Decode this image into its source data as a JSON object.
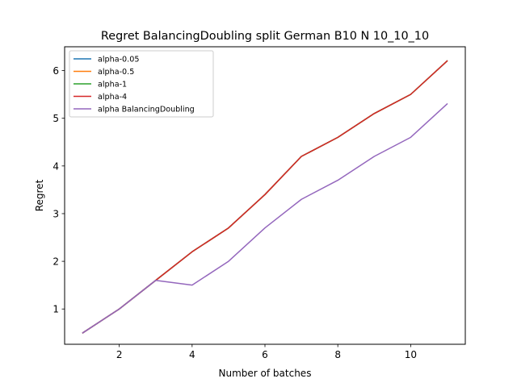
{
  "chart_data": {
    "type": "line",
    "title": "Regret BalancingDoubling split German B10 N 10_10_10",
    "xlabel": "Number of batches",
    "ylabel": "Regret",
    "xlim": [
      0.5,
      11.5
    ],
    "ylim": [
      0.26,
      6.5
    ],
    "xticks": [
      2,
      4,
      6,
      8,
      10
    ],
    "yticks": [
      1,
      2,
      3,
      4,
      5,
      6
    ],
    "xtick_labels": [
      "2",
      "4",
      "6",
      "8",
      "10"
    ],
    "ytick_labels": [
      "1",
      "2",
      "3",
      "4",
      "5",
      "6"
    ],
    "grid": false,
    "legend_position": "top-left",
    "x": [
      1,
      2,
      3,
      4,
      5,
      6,
      7,
      8,
      9,
      10,
      11
    ],
    "series": [
      {
        "name": "alpha-0.05",
        "color": "#1f77b4",
        "values": [
          0.5,
          1.0,
          1.6,
          2.2,
          2.7,
          3.4,
          4.2,
          4.6,
          5.1,
          5.5,
          6.2
        ]
      },
      {
        "name": "alpha-0.5",
        "color": "#ff7f0e",
        "values": [
          0.5,
          1.0,
          1.6,
          2.2,
          2.7,
          3.4,
          4.2,
          4.6,
          5.1,
          5.5,
          6.2
        ]
      },
      {
        "name": "alpha-1",
        "color": "#2ca02c",
        "values": [
          0.5,
          1.0,
          1.6,
          2.2,
          2.7,
          3.4,
          4.2,
          4.6,
          5.1,
          5.5,
          6.2
        ]
      },
      {
        "name": "alpha-4",
        "color": "#d62728",
        "values": [
          0.5,
          1.0,
          1.6,
          2.2,
          2.7,
          3.4,
          4.2,
          4.6,
          5.1,
          5.5,
          6.2
        ]
      },
      {
        "name": "alpha BalancingDoubling",
        "color": "#9467bd",
        "values": [
          0.5,
          1.0,
          1.6,
          1.5,
          2.0,
          2.7,
          3.3,
          3.7,
          4.2,
          4.6,
          5.3
        ]
      }
    ]
  }
}
